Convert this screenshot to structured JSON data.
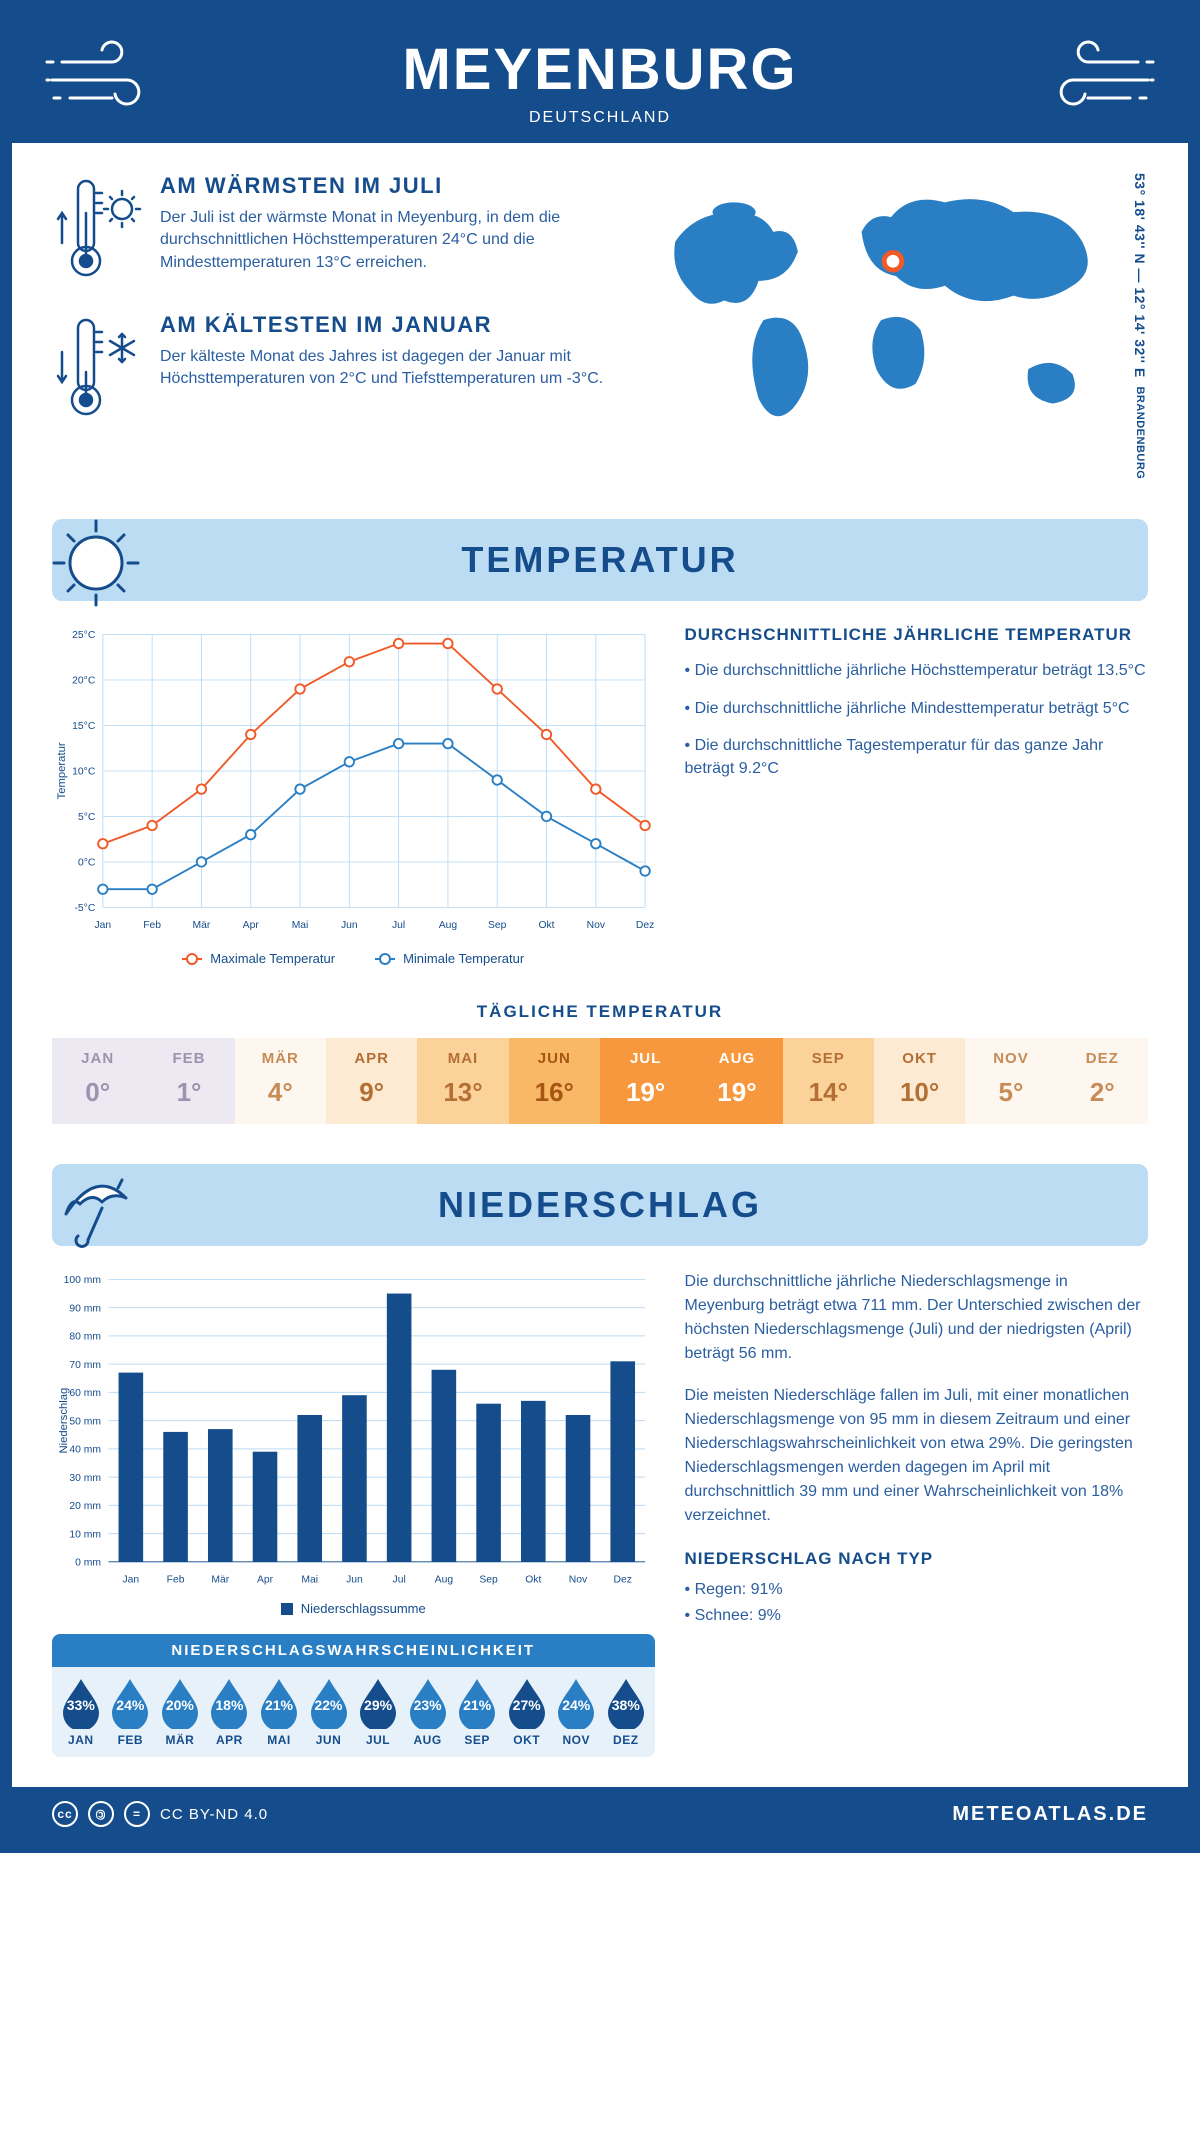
{
  "header": {
    "title": "MEYENBURG",
    "subtitle": "DEUTSCHLAND"
  },
  "info": {
    "warmest": {
      "heading": "AM WÄRMSTEN IM JULI",
      "text": "Der Juli ist der wärmste Monat in Meyenburg, in dem die durchschnittlichen Höchsttemperaturen 24°C und die Mindesttemperaturen 13°C erreichen."
    },
    "coldest": {
      "heading": "AM KÄLTESTEN IM JANUAR",
      "text": "Der kälteste Monat des Jahres ist dagegen der Januar mit Höchsttemperaturen von 2°C und Tiefsttemperaturen um -3°C."
    },
    "coords": "53° 18' 43'' N — 12° 14' 32'' E",
    "region": "BRANDENBURG"
  },
  "temperature": {
    "banner": "TEMPERATUR",
    "chart": {
      "type": "line",
      "months": [
        "Jan",
        "Feb",
        "Mär",
        "Apr",
        "Mai",
        "Jun",
        "Jul",
        "Aug",
        "Sep",
        "Okt",
        "Nov",
        "Dez"
      ],
      "max_series": [
        2,
        4,
        8,
        14,
        19,
        22,
        24,
        24,
        19,
        14,
        8,
        4
      ],
      "min_series": [
        -3,
        -3,
        0,
        3,
        8,
        11,
        13,
        13,
        9,
        5,
        2,
        -1
      ],
      "max_color": "#f05a28",
      "min_color": "#2a7fc4",
      "ylim": [
        -5,
        25
      ],
      "ytick_step": 5,
      "y_unit": "°C",
      "y_axis_title": "Temperatur",
      "grid_color": "#bcdcf4",
      "background": "#ffffff",
      "marker_size": 5,
      "line_width": 2,
      "legend_max": "Maximale Temperatur",
      "legend_min": "Minimale Temperatur"
    },
    "summary_title": "DURCHSCHNITTLICHE JÄHRLICHE TEMPERATUR",
    "summary": [
      "• Die durchschnittliche jährliche Höchsttemperatur beträgt 13.5°C",
      "• Die durchschnittliche jährliche Mindesttemperatur beträgt 5°C",
      "• Die durchschnittliche Tagestemperatur für das ganze Jahr beträgt 9.2°C"
    ],
    "daily_title": "TÄGLICHE TEMPERATUR",
    "daily": {
      "months": [
        "JAN",
        "FEB",
        "MÄR",
        "APR",
        "MAI",
        "JUN",
        "JUL",
        "AUG",
        "SEP",
        "OKT",
        "NOV",
        "DEZ"
      ],
      "values": [
        "0°",
        "1°",
        "4°",
        "9°",
        "13°",
        "16°",
        "19°",
        "19°",
        "14°",
        "10°",
        "5°",
        "2°"
      ],
      "bg_colors": [
        "#ece9f2",
        "#ece9f2",
        "#fdf7f0",
        "#fcebd2",
        "#fbd29a",
        "#f9b866",
        "#f7983e",
        "#f7983e",
        "#fbd29a",
        "#fcebd2",
        "#fdf7f0",
        "#fdf7f0"
      ],
      "text_colors": [
        "#9b94ad",
        "#9b94ad",
        "#c78b56",
        "#b36f34",
        "#b36f34",
        "#a65613",
        "#ffffff",
        "#ffffff",
        "#b36f34",
        "#b36f34",
        "#c78b56",
        "#c78b56"
      ]
    }
  },
  "precip": {
    "banner": "NIEDERSCHLAG",
    "chart": {
      "type": "bar",
      "months": [
        "Jan",
        "Feb",
        "Mär",
        "Apr",
        "Mai",
        "Jun",
        "Jul",
        "Aug",
        "Sep",
        "Okt",
        "Nov",
        "Dez"
      ],
      "values": [
        67,
        46,
        47,
        39,
        52,
        59,
        95,
        68,
        56,
        57,
        52,
        71
      ],
      "bar_color": "#154d8c",
      "ylim": [
        0,
        100
      ],
      "ytick_step": 10,
      "y_unit": " mm",
      "y_axis_title": "Niederschlag",
      "grid_color": "#bcdcf4",
      "bar_width": 0.55,
      "legend_label": "Niederschlagssumme"
    },
    "text1": "Die durchschnittliche jährliche Niederschlagsmenge in Meyenburg beträgt etwa 711 mm. Der Unterschied zwischen der höchsten Niederschlagsmenge (Juli) und der niedrigsten (April) beträgt 56 mm.",
    "text2": "Die meisten Niederschläge fallen im Juli, mit einer monatlichen Niederschlagsmenge von 95 mm in diesem Zeitraum und einer Niederschlagswahrscheinlichkeit von etwa 29%. Die geringsten Niederschlagsmengen werden dagegen im April mit durchschnittlich 39 mm und einer Wahrscheinlichkeit von 18% verzeichnet.",
    "type_title": "NIEDERSCHLAG NACH TYP",
    "type_list": [
      "• Regen: 91%",
      "• Schnee: 9%"
    ],
    "prob_title": "NIEDERSCHLAGSWAHRSCHEINLICHKEIT",
    "prob": {
      "months": [
        "JAN",
        "FEB",
        "MÄR",
        "APR",
        "MAI",
        "JUN",
        "JUL",
        "AUG",
        "SEP",
        "OKT",
        "NOV",
        "DEZ"
      ],
      "values": [
        "33%",
        "24%",
        "20%",
        "18%",
        "21%",
        "22%",
        "29%",
        "23%",
        "21%",
        "27%",
        "24%",
        "38%"
      ],
      "fill_colors": [
        "#154d8c",
        "#2a7fc4",
        "#2a7fc4",
        "#2a7fc4",
        "#2a7fc4",
        "#2a7fc4",
        "#154d8c",
        "#2a7fc4",
        "#2a7fc4",
        "#154d8c",
        "#2a7fc4",
        "#154d8c"
      ]
    }
  },
  "footer": {
    "license": "CC BY-ND 4.0",
    "site": "METEOATLAS.DE"
  },
  "colors": {
    "primary": "#154d8c",
    "light": "#bcdcf4",
    "accent": "#2a7fc4",
    "orange": "#f05a28"
  }
}
